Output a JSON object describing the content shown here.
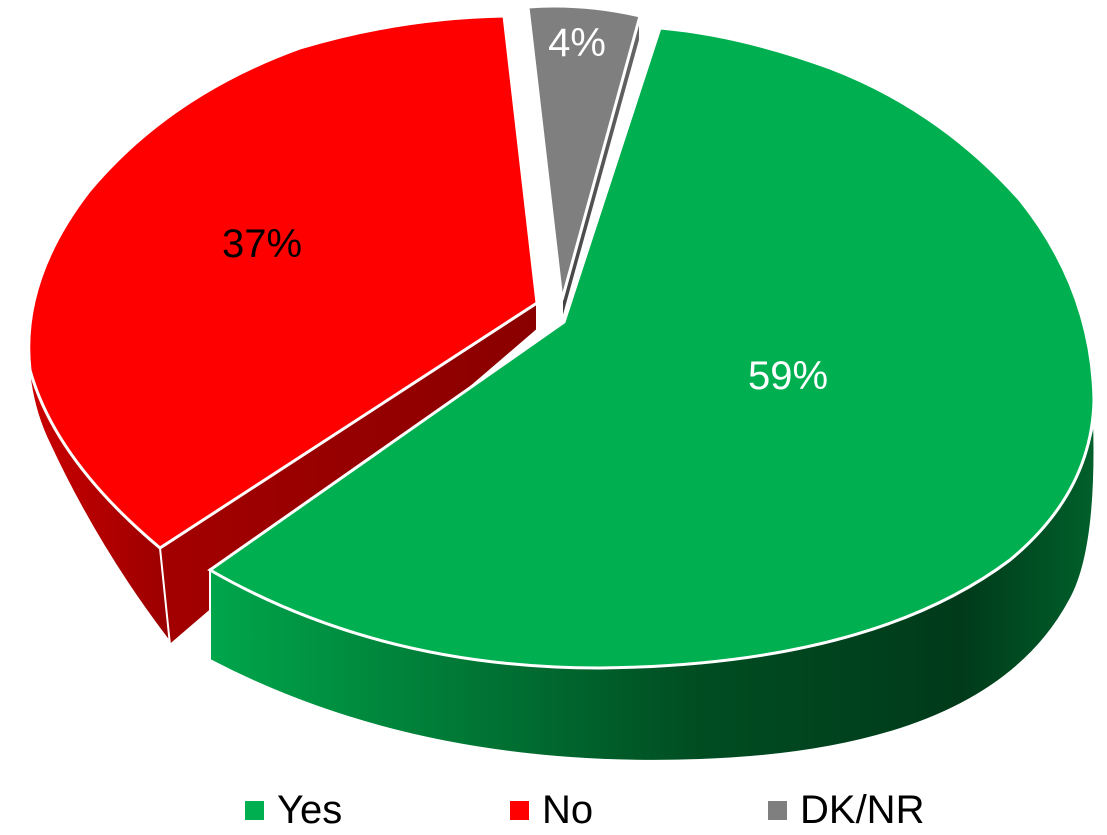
{
  "chart_data": {
    "type": "pie",
    "style": "3d-exploded",
    "categories": [
      "Yes",
      "No",
      "DK/NR"
    ],
    "values": [
      59,
      37,
      4
    ],
    "data_labels": [
      "59%",
      "37%",
      "4%"
    ],
    "colors": [
      "#00b050",
      "#ff0000",
      "#7f7f7f"
    ],
    "side_colors": [
      "#006b2e",
      "#b30000",
      "#555555"
    ],
    "label_colors": [
      "#ffffff",
      "#000000",
      "#ffffff"
    ],
    "legend_position": "bottom"
  }
}
